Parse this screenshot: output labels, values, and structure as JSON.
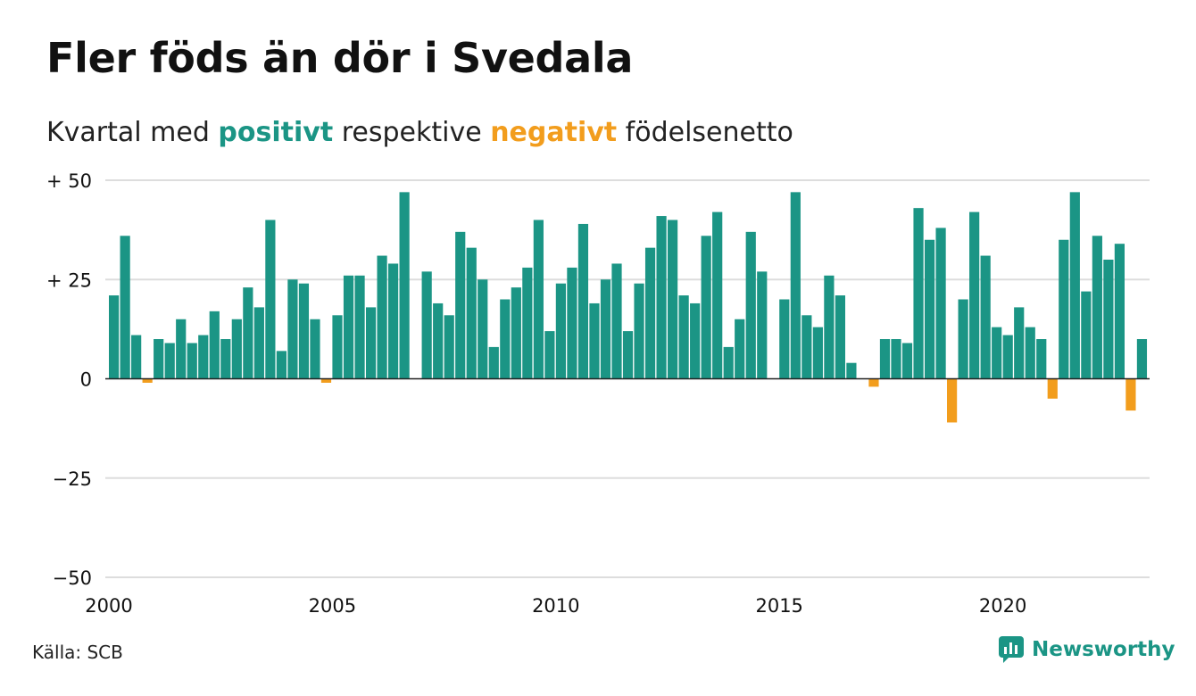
{
  "title": "Fler föds än dör i Svedala",
  "subtitle": {
    "prefix": "Kvartal med ",
    "positive": "positivt",
    "middle": " respektive ",
    "negative": "negativt",
    "suffix": " födelsenetto"
  },
  "source": "Källa: SCB",
  "brand": "Newsworthy",
  "colors": {
    "positive": "#1b9585",
    "negative": "#f29d1d",
    "grid": "#dddddd",
    "axis": "#222222",
    "text": "#111111"
  },
  "chart_data": {
    "type": "bar",
    "title": "Fler föds än dör i Svedala",
    "subtitle": "Kvartal med positivt respektive negativt födelsenetto",
    "xlabel": "",
    "ylabel": "",
    "ylim": [
      -50,
      50
    ],
    "y_ticks": [
      {
        "value": 50,
        "label": "+ 50"
      },
      {
        "value": 25,
        "label": "+ 25"
      },
      {
        "value": 0,
        "label": "0"
      },
      {
        "value": -25,
        "label": "−25"
      },
      {
        "value": -50,
        "label": "−50"
      }
    ],
    "x_ticks": [
      {
        "label": "2000",
        "index": 0
      },
      {
        "label": "2005",
        "index": 20
      },
      {
        "label": "2010",
        "index": 40
      },
      {
        "label": "2015",
        "index": 60
      },
      {
        "label": "2020",
        "index": 80
      }
    ],
    "start": {
      "year": 2000,
      "quarter": 1
    },
    "grid": true,
    "legend": "none",
    "values": [
      21,
      36,
      11,
      -1,
      10,
      9,
      15,
      9,
      11,
      17,
      10,
      15,
      23,
      18,
      40,
      7,
      25,
      24,
      15,
      -1,
      16,
      26,
      26,
      18,
      31,
      29,
      47,
      0,
      27,
      19,
      16,
      37,
      33,
      25,
      8,
      20,
      23,
      28,
      40,
      12,
      24,
      28,
      39,
      19,
      25,
      29,
      12,
      24,
      33,
      41,
      40,
      21,
      19,
      36,
      42,
      8,
      15,
      37,
      27,
      0,
      20,
      47,
      16,
      13,
      26,
      21,
      4,
      0,
      -2,
      10,
      10,
      9,
      43,
      35,
      38,
      -11,
      20,
      42,
      31,
      13,
      11,
      18,
      13,
      10,
      -5,
      35,
      47,
      22,
      36,
      30,
      34,
      -8,
      10
    ]
  }
}
